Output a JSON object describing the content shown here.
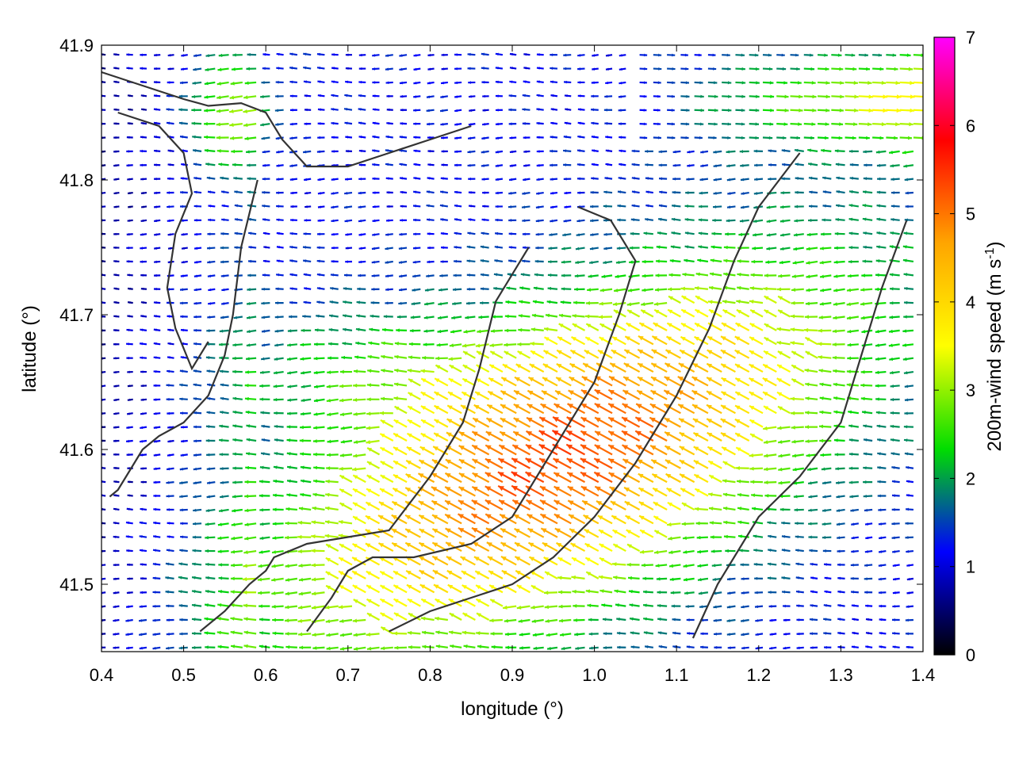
{
  "chart_data": {
    "type": "quiver",
    "title": "",
    "xlabel": "longitude (°)",
    "ylabel": "latitude (°)",
    "colorbar_label": "200m-wind speed (m s-1)",
    "colorbar_label_main": "200m-wind speed (m s",
    "colorbar_label_sup": "-1",
    "colorbar_label_end": ")",
    "xlim": [
      0.4,
      1.4
    ],
    "ylim": [
      41.45,
      41.9
    ],
    "color_range": [
      0,
      7
    ],
    "x_ticks": [
      0.4,
      0.5,
      0.6,
      0.7,
      0.8,
      0.9,
      1.0,
      1.1,
      1.2,
      1.3,
      1.4
    ],
    "x_tick_labels": [
      "0.4",
      "0.5",
      "0.6",
      "0.7",
      "0.8",
      "0.9",
      "1.0",
      "1.1",
      "1.2",
      "1.3",
      "1.4"
    ],
    "y_ticks": [
      41.5,
      41.6,
      41.7,
      41.8,
      41.9
    ],
    "y_tick_labels": [
      "41.5",
      "41.6",
      "41.7",
      "41.8",
      "41.9"
    ],
    "colorbar_ticks": [
      0,
      1,
      2,
      3,
      4,
      5,
      6,
      7
    ],
    "colorbar_tick_labels": [
      "0",
      "1",
      "2",
      "3",
      "4",
      "5",
      "6",
      "7"
    ],
    "colormap": [
      "#000000",
      "#0000ff",
      "#00dd00",
      "#ffff00",
      "#ffa500",
      "#ff0000",
      "#ff00ff"
    ],
    "grid": false,
    "wind_field": {
      "description_free": true,
      "grid_nx": 60,
      "grid_ny": 44,
      "max_speed_center": [
        0.97,
        41.59
      ],
      "max_speed": 5.3,
      "background_direction_deg": 180,
      "sample_vectors": [
        {
          "lon": 0.45,
          "lat": 41.85,
          "u": -1.2,
          "v": 0.0
        },
        {
          "lon": 0.97,
          "lat": 41.59,
          "u": -4.6,
          "v": -2.5
        },
        {
          "lon": 1.3,
          "lat": 41.85,
          "u": 4.0,
          "v": 0.3
        },
        {
          "lon": 0.7,
          "lat": 41.48,
          "u": -3.8,
          "v": -2.0
        },
        {
          "lon": 0.45,
          "lat": 41.55,
          "u": -0.8,
          "v": 0.1
        }
      ]
    },
    "coastline_contours": [
      {
        "lon": [
          0.4,
          0.45,
          0.5,
          0.53,
          0.57,
          0.6,
          0.62,
          0.65,
          0.7,
          0.75,
          0.8,
          0.85
        ],
        "lat": [
          41.88,
          41.87,
          41.86,
          41.855,
          41.857,
          41.85,
          41.83,
          41.81,
          41.81,
          41.82,
          41.83,
          41.84
        ]
      },
      {
        "lon": [
          0.42,
          0.47,
          0.5,
          0.51,
          0.49,
          0.48,
          0.49,
          0.51,
          0.53
        ],
        "lat": [
          41.85,
          41.84,
          41.82,
          41.79,
          41.76,
          41.72,
          41.69,
          41.66,
          41.68
        ]
      },
      {
        "lon": [
          0.59,
          0.57,
          0.56,
          0.55,
          0.53,
          0.5,
          0.47,
          0.45,
          0.43,
          0.42,
          0.41
        ],
        "lat": [
          41.8,
          41.75,
          41.7,
          41.67,
          41.64,
          41.62,
          41.61,
          41.6,
          41.58,
          41.57,
          41.565
        ]
      },
      {
        "lon": [
          0.52,
          0.55,
          0.58,
          0.6,
          0.61,
          0.65,
          0.7,
          0.75,
          0.8,
          0.84,
          0.86,
          0.88,
          0.92
        ],
        "lat": [
          41.465,
          41.48,
          41.5,
          41.51,
          41.52,
          41.53,
          41.535,
          41.54,
          41.58,
          41.62,
          41.66,
          41.71,
          41.75
        ]
      },
      {
        "lon": [
          0.65,
          0.68,
          0.7,
          0.73,
          0.78,
          0.85,
          0.9,
          0.95,
          1.0,
          1.03,
          1.05,
          1.02,
          0.98
        ],
        "lat": [
          41.465,
          41.49,
          41.51,
          41.52,
          41.52,
          41.53,
          41.55,
          41.6,
          41.65,
          41.7,
          41.74,
          41.77,
          41.78
        ]
      },
      {
        "lon": [
          0.75,
          0.8,
          0.85,
          0.9,
          0.95,
          1.0,
          1.05,
          1.1,
          1.14,
          1.17,
          1.2,
          1.25
        ],
        "lat": [
          41.465,
          41.48,
          41.49,
          41.5,
          41.52,
          41.55,
          41.59,
          41.64,
          41.69,
          41.74,
          41.78,
          41.82
        ]
      },
      {
        "lon": [
          1.12,
          1.15,
          1.2,
          1.25,
          1.3,
          1.32,
          1.35,
          1.38
        ],
        "lat": [
          41.46,
          41.5,
          41.55,
          41.58,
          41.62,
          41.66,
          41.72,
          41.77
        ]
      }
    ]
  }
}
